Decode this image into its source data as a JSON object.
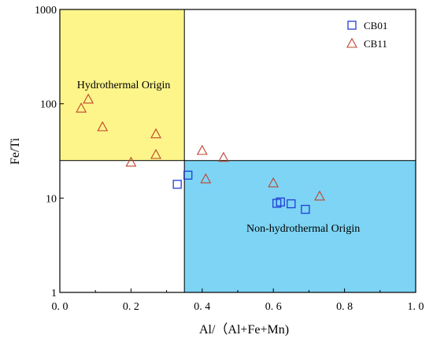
{
  "chart_data": {
    "type": "scatter",
    "x_scale": "linear",
    "y_scale": "log",
    "xlabel": "Al/（Al+Fe+Mn)",
    "ylabel": "Fe/Ti",
    "xlim": [
      0.0,
      1.0
    ],
    "ylim": [
      1,
      1000
    ],
    "x_ticks": [
      {
        "value": 0.0,
        "label": "0. 0"
      },
      {
        "value": 0.2,
        "label": "0. 2"
      },
      {
        "value": 0.4,
        "label": "0. 4"
      },
      {
        "value": 0.6,
        "label": "0. 6"
      },
      {
        "value": 0.8,
        "label": "0. 8"
      },
      {
        "value": 1.0,
        "label": "1. 0"
      }
    ],
    "y_ticks": [
      {
        "value": 1,
        "label": "1"
      },
      {
        "value": 10,
        "label": "10"
      },
      {
        "value": 100,
        "label": "100"
      },
      {
        "value": 1000,
        "label": "1000"
      }
    ],
    "grid": false,
    "legend_position": "top-right",
    "regions": [
      {
        "name": "hydrothermal",
        "label": "Hydrothermal Origin",
        "x_range": [
          0.0,
          0.35
        ],
        "y_range": [
          25,
          1000
        ],
        "color": "#fdf58a"
      },
      {
        "name": "non-hydrothermal",
        "label": "Non-hydrothermal Origin",
        "x_range": [
          0.35,
          1.0
        ],
        "y_range": [
          1,
          25
        ],
        "color": "#7dd4f4"
      }
    ],
    "series": [
      {
        "name": "CB01",
        "marker": "square",
        "color": "#1f3fd6",
        "points": [
          {
            "x": 0.33,
            "y": 14
          },
          {
            "x": 0.36,
            "y": 17.5
          },
          {
            "x": 0.61,
            "y": 8.8
          },
          {
            "x": 0.62,
            "y": 9.1
          },
          {
            "x": 0.65,
            "y": 8.7
          },
          {
            "x": 0.69,
            "y": 7.6
          }
        ]
      },
      {
        "name": "CB11",
        "marker": "triangle",
        "color": "#c0432b",
        "points": [
          {
            "x": 0.06,
            "y": 90
          },
          {
            "x": 0.08,
            "y": 112
          },
          {
            "x": 0.12,
            "y": 57
          },
          {
            "x": 0.2,
            "y": 24
          },
          {
            "x": 0.27,
            "y": 29
          },
          {
            "x": 0.27,
            "y": 48
          },
          {
            "x": 0.4,
            "y": 32
          },
          {
            "x": 0.41,
            "y": 16
          },
          {
            "x": 0.46,
            "y": 27
          },
          {
            "x": 0.6,
            "y": 14.5
          },
          {
            "x": 0.73,
            "y": 10.5
          }
        ]
      }
    ]
  }
}
